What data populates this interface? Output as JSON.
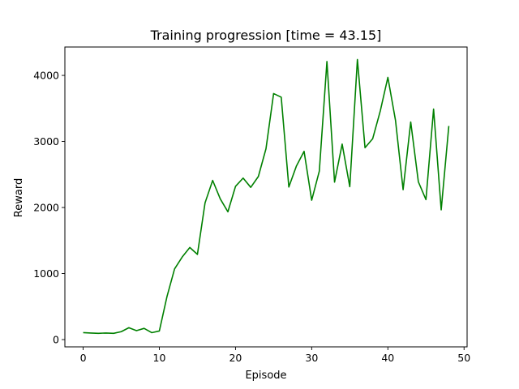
{
  "chart_data": {
    "type": "line",
    "title": "Training progression [time = 43.15]",
    "xlabel": "Episode",
    "ylabel": "Reward",
    "xlim": [
      -2.4,
      50.4
    ],
    "ylim": [
      -110,
      4430
    ],
    "xticks": [
      0,
      10,
      20,
      30,
      40,
      50
    ],
    "yticks": [
      0,
      1000,
      2000,
      3000,
      4000
    ],
    "grid": false,
    "legend": "none",
    "series": [
      {
        "color": "#008000",
        "x": [
          0,
          1,
          2,
          3,
          4,
          5,
          6,
          7,
          8,
          9,
          10,
          11,
          12,
          13,
          14,
          15,
          16,
          17,
          18,
          19,
          20,
          21,
          22,
          23,
          24,
          25,
          26,
          27,
          28,
          29,
          30,
          31,
          32,
          33,
          34,
          35,
          36,
          37,
          38,
          39,
          40,
          41,
          42,
          43,
          44,
          45,
          46,
          47,
          48
        ],
        "values": [
          105,
          100,
          95,
          100,
          95,
          120,
          180,
          135,
          170,
          105,
          130,
          650,
          1070,
          1250,
          1395,
          1290,
          2070,
          2410,
          2130,
          1935,
          2320,
          2445,
          2305,
          2470,
          2890,
          3725,
          3670,
          2310,
          2630,
          2850,
          2110,
          2550,
          4210,
          2385,
          2960,
          2315,
          4240,
          2905,
          3040,
          3460,
          3970,
          3320,
          2270,
          3295,
          2390,
          2120,
          3490,
          1965,
          3235
        ]
      }
    ]
  }
}
